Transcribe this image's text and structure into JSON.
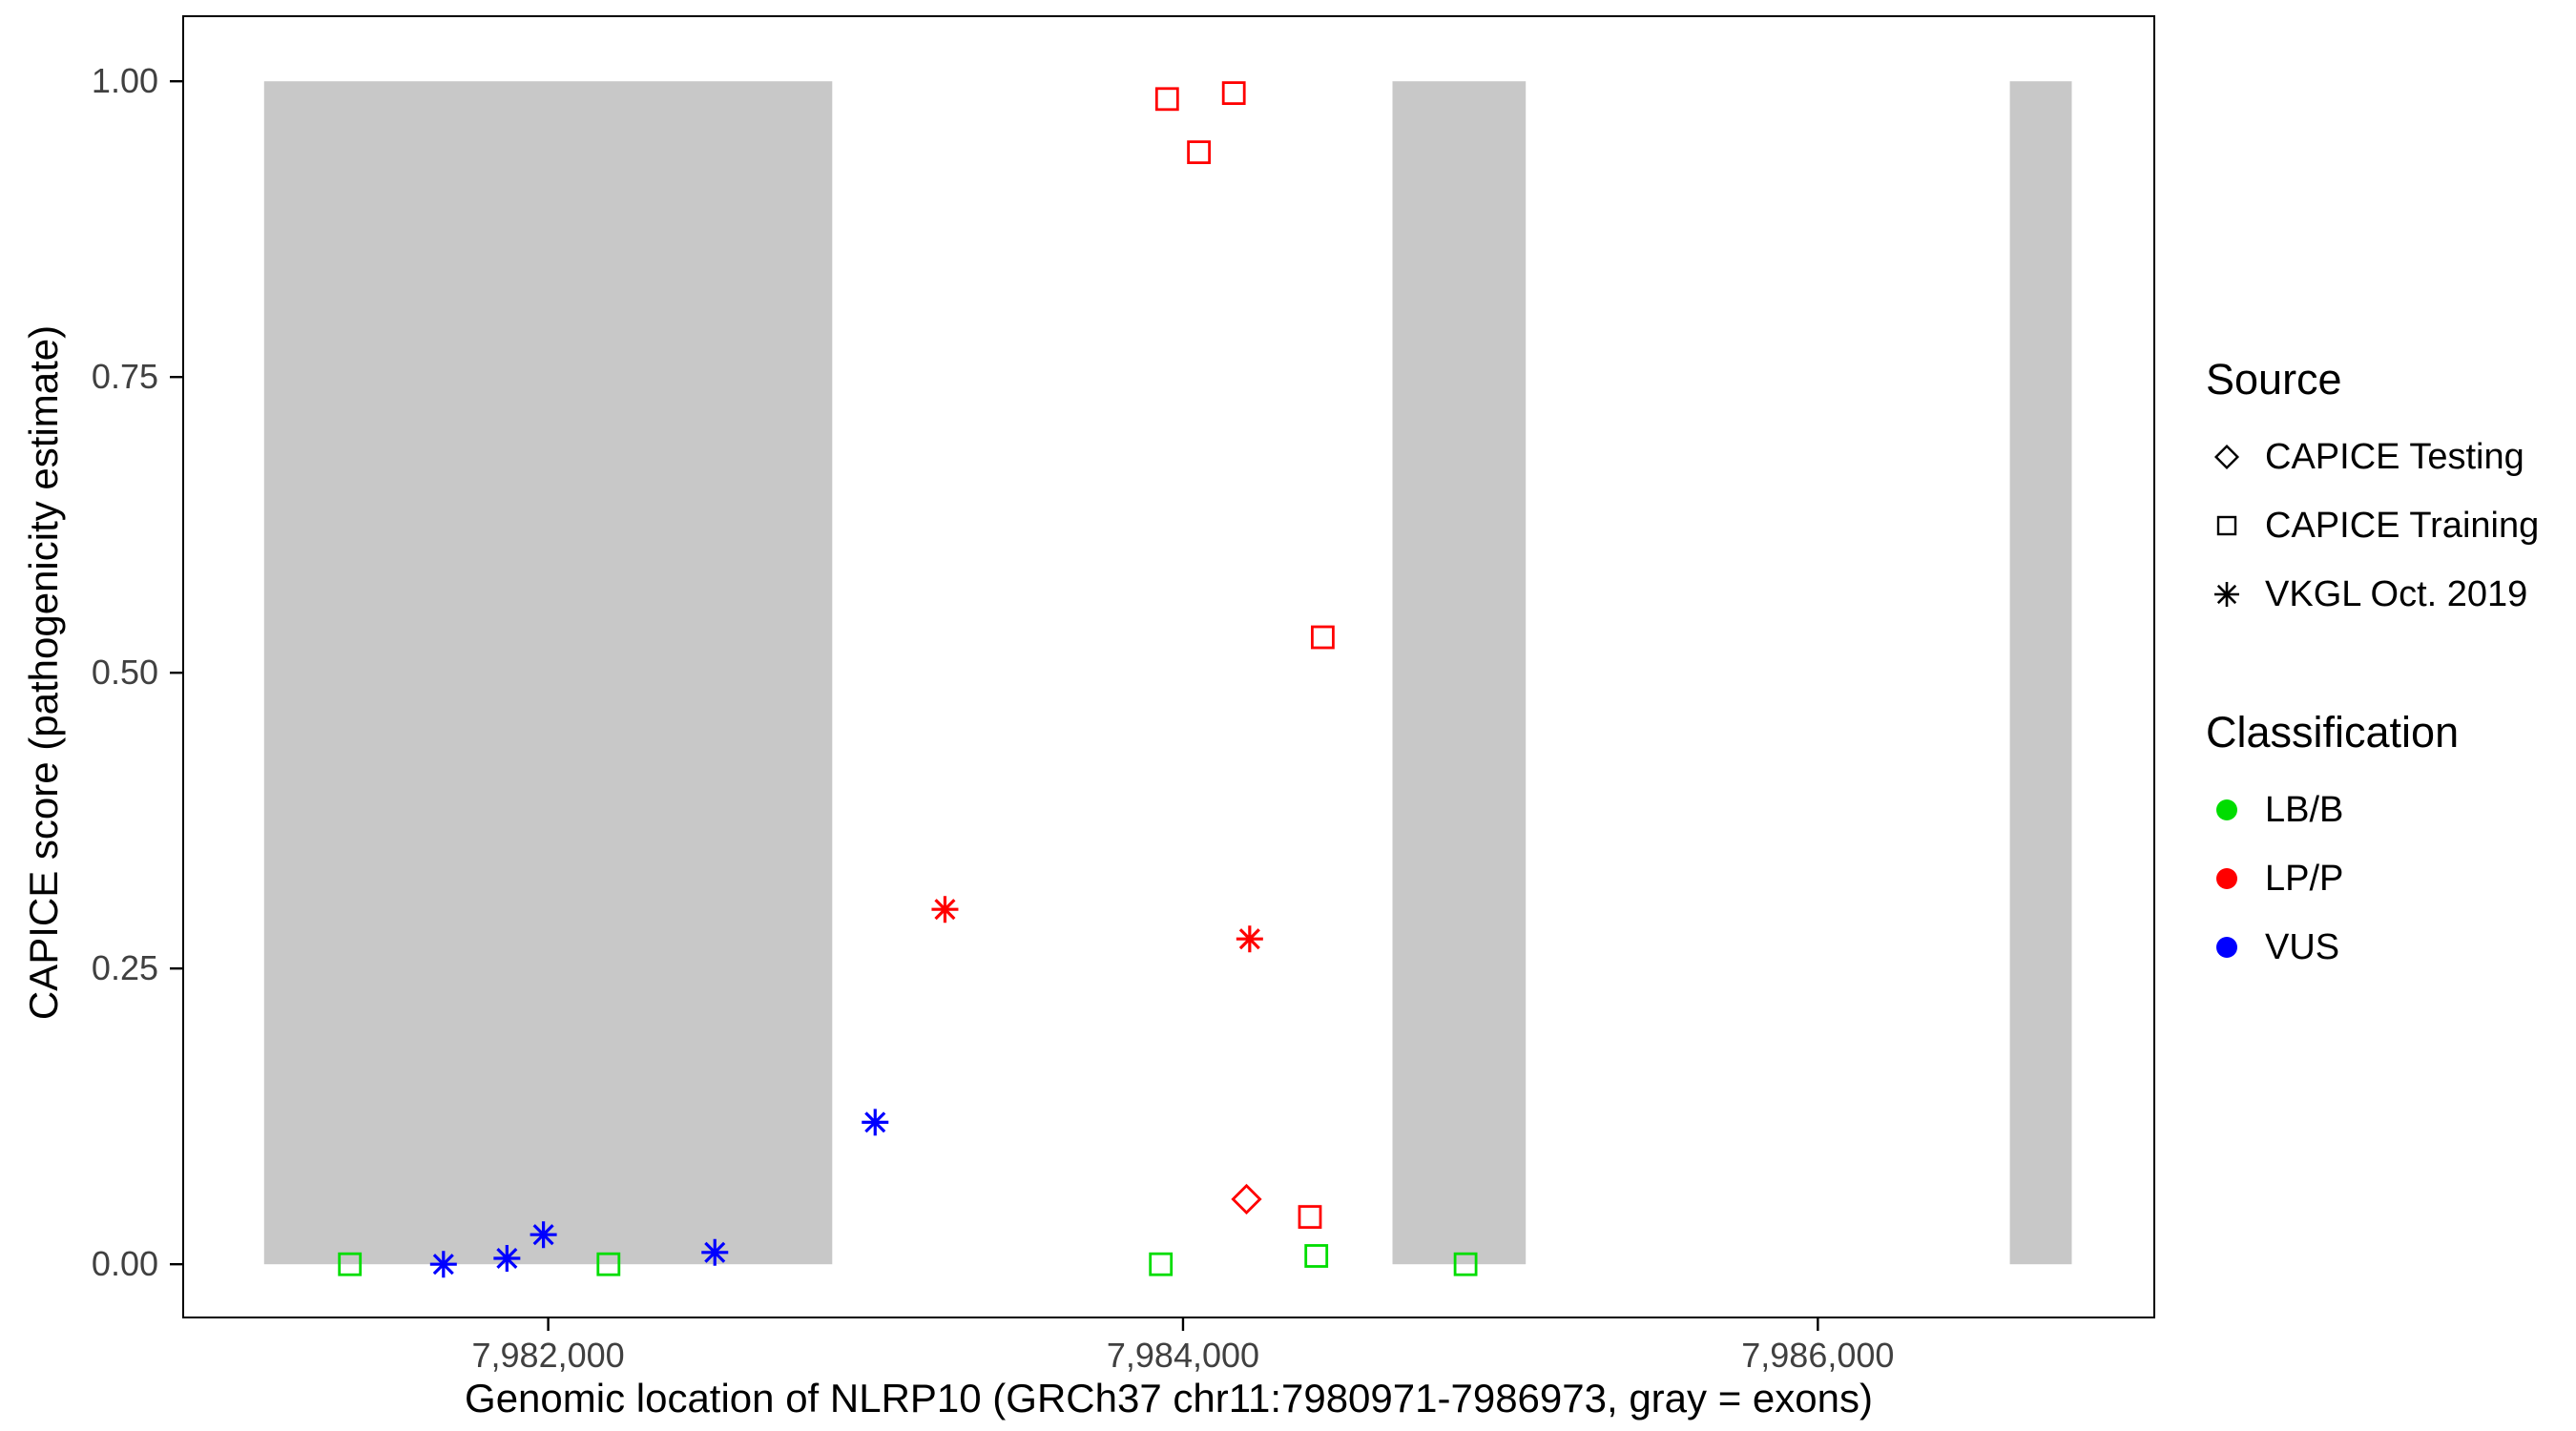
{
  "legend": {
    "source": {
      "title": "Source",
      "items": [
        {
          "label": "CAPICE Testing",
          "shape": "diamond"
        },
        {
          "label": "CAPICE Training",
          "shape": "square"
        },
        {
          "label": "VKGL Oct. 2019",
          "shape": "asterisk"
        }
      ]
    },
    "classification": {
      "title": "Classification",
      "items": [
        {
          "label": "LB/B",
          "color": "#00DD00"
        },
        {
          "label": "LP/P",
          "color": "#FF0000"
        },
        {
          "label": "VUS",
          "color": "#0000FF"
        }
      ]
    }
  },
  "chart_data": {
    "type": "scatter",
    "title": "",
    "xlabel": "Genomic location of NLRP10 (GRCh37 chr11:7980971-7986973, gray = exons)",
    "ylabel": "CAPICE score (pathogenicity estimate)",
    "x_domain": [
      7980850,
      7987060
    ],
    "y_domain": [
      -0.045,
      1.055
    ],
    "x_ticks": [
      {
        "value": 7982000,
        "label": "7,982,000"
      },
      {
        "value": 7984000,
        "label": "7,984,000"
      },
      {
        "value": 7986000,
        "label": "7,986,000"
      }
    ],
    "y_ticks": [
      {
        "value": 0.0,
        "label": "0.00"
      },
      {
        "value": 0.25,
        "label": "0.25"
      },
      {
        "value": 0.5,
        "label": "0.50"
      },
      {
        "value": 0.75,
        "label": "0.75"
      },
      {
        "value": 1.0,
        "label": "1.00"
      }
    ],
    "exon_color": "#C8C8C8",
    "exon_band_y": [
      0,
      1
    ],
    "exons": [
      [
        7981105,
        7982895
      ],
      [
        7984660,
        7985080
      ],
      [
        7986605,
        7986800
      ]
    ],
    "shape_by_source": {
      "CAPICE Testing": "diamond",
      "CAPICE Training": "square",
      "VKGL Oct. 2019": "asterisk"
    },
    "color_by_classification": {
      "LB/B": "#00DD00",
      "LP/P": "#FF0000",
      "VUS": "#0000FF"
    },
    "points": [
      {
        "x": 7981375,
        "y": 0.0,
        "source": "CAPICE Training",
        "classification": "LB/B"
      },
      {
        "x": 7981670,
        "y": 0.0,
        "source": "VKGL Oct. 2019",
        "classification": "VUS"
      },
      {
        "x": 7981870,
        "y": 0.005,
        "source": "VKGL Oct. 2019",
        "classification": "VUS"
      },
      {
        "x": 7981985,
        "y": 0.025,
        "source": "VKGL Oct. 2019",
        "classification": "VUS"
      },
      {
        "x": 7982190,
        "y": 0.0,
        "source": "CAPICE Training",
        "classification": "LB/B"
      },
      {
        "x": 7982525,
        "y": 0.01,
        "source": "VKGL Oct. 2019",
        "classification": "VUS"
      },
      {
        "x": 7983030,
        "y": 0.12,
        "source": "VKGL Oct. 2019",
        "classification": "VUS"
      },
      {
        "x": 7983250,
        "y": 0.3,
        "source": "VKGL Oct. 2019",
        "classification": "LP/P"
      },
      {
        "x": 7983930,
        "y": 0.0,
        "source": "CAPICE Training",
        "classification": "LB/B"
      },
      {
        "x": 7983950,
        "y": 0.985,
        "source": "CAPICE Training",
        "classification": "LP/P"
      },
      {
        "x": 7984050,
        "y": 0.94,
        "source": "CAPICE Training",
        "classification": "LP/P"
      },
      {
        "x": 7984160,
        "y": 0.99,
        "source": "CAPICE Training",
        "classification": "LP/P"
      },
      {
        "x": 7984200,
        "y": 0.055,
        "source": "CAPICE Testing",
        "classification": "LP/P"
      },
      {
        "x": 7984210,
        "y": 0.275,
        "source": "VKGL Oct. 2019",
        "classification": "LP/P"
      },
      {
        "x": 7984400,
        "y": 0.04,
        "source": "CAPICE Training",
        "classification": "LP/P"
      },
      {
        "x": 7984420,
        "y": 0.007,
        "source": "CAPICE Training",
        "classification": "LB/B"
      },
      {
        "x": 7984440,
        "y": 0.53,
        "source": "CAPICE Training",
        "classification": "LP/P"
      },
      {
        "x": 7984890,
        "y": 0.0,
        "source": "CAPICE Training",
        "classification": "LB/B"
      }
    ]
  }
}
